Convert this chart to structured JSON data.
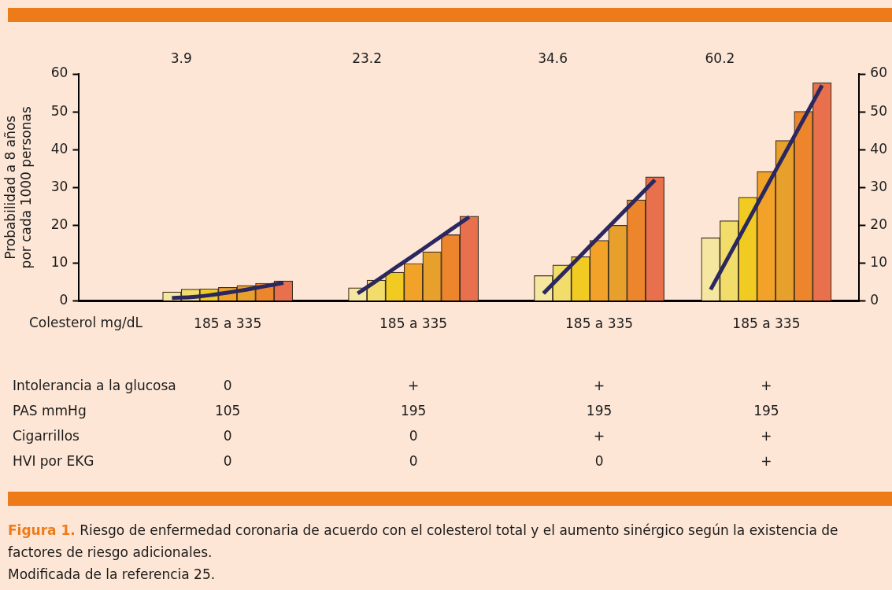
{
  "chart_data": {
    "type": "bar",
    "title": "Figura 1.",
    "subtitle": "Riesgo de enfermedad coronaria de acuerdo con el colesterol total y el aumento sinérgico según la existencia de factores de riesgo adicionales.",
    "ylabel": "Probabilidad a 8 años por cada 1000 personas",
    "xlabel": "Colesterol mg/dL",
    "categories": [
      null,
      null,
      null,
      null,
      null,
      null,
      null,
      null,
      "185 a 335",
      null,
      null,
      null,
      null,
      null,
      null,
      null,
      null,
      null,
      "185 a 335",
      null,
      null,
      null,
      null,
      null,
      null,
      null,
      null,
      null,
      "185 a 335",
      null,
      null,
      null,
      null,
      null,
      null,
      null,
      null,
      "185 a 335",
      null,
      null,
      null,
      null,
      null
    ],
    "series": [
      {
        "colors": [
          null,
          null,
          null,
          null,
          null,
          "#f5e6a0",
          "#f2dd6a",
          "#f2cb22",
          "#f2a228",
          "#e8a02c",
          "#ec852c",
          "#e8704c",
          null,
          null,
          null,
          "#f5e6a0",
          "#f2dd6a",
          "#f2cb22",
          "#f2a228",
          "#e8a02c",
          "#ec852c",
          "#e8704c",
          null,
          null,
          null,
          "#f5e6a0",
          "#f2dd6a",
          "#f2cb22",
          "#f2a228",
          "#e8a02c",
          "#ec852c",
          "#e8704c",
          null,
          null,
          "#f5e6a0",
          "#f2dd6a",
          "#f2cb22",
          "#f2a228",
          "#e8a02c",
          "#ec852c",
          "#e8704c",
          null,
          null
        ],
        "values": [
          null,
          null,
          null,
          null,
          null,
          2.4,
          3.1,
          3.2,
          3.6,
          4.1,
          4.7,
          5.3,
          null,
          null,
          null,
          3.5,
          5.5,
          7.6,
          9.9,
          13,
          17.5,
          22.4,
          null,
          null,
          null,
          6.7,
          9.5,
          11.7,
          16,
          20,
          26.7,
          32.8,
          null,
          null,
          16.7,
          21.2,
          27.4,
          34.2,
          42.4,
          50.1,
          57.7,
          null,
          null
        ]
      },
      {
        "type": "line",
        "color": "#2b2860",
        "values": [
          null,
          null,
          null,
          null,
          null,
          0.8,
          1,
          1.5,
          2.2,
          3,
          3.9,
          4.8,
          null,
          null,
          null,
          null,
          null,
          null,
          null,
          null,
          null,
          null,
          null,
          null,
          null,
          null,
          null,
          null,
          null,
          null,
          null,
          null,
          null,
          null,
          null,
          null,
          null,
          null,
          null,
          null,
          null,
          null,
          null
        ]
      },
      {
        "type": "line",
        "color": "#2b2860",
        "values": [
          null,
          null,
          null,
          null,
          null,
          null,
          null,
          null,
          null,
          null,
          null,
          null,
          null,
          null,
          null,
          2,
          5.3,
          8.7,
          12,
          15.4,
          18.8,
          22.2,
          null,
          null,
          null,
          null,
          null,
          null,
          null,
          null,
          null,
          null,
          null,
          null,
          null,
          null,
          null,
          null,
          null,
          null,
          null,
          null,
          null
        ]
      },
      {
        "type": "line",
        "color": "#2b2860",
        "values": [
          null,
          null,
          null,
          null,
          null,
          null,
          null,
          null,
          null,
          null,
          null,
          null,
          null,
          null,
          null,
          null,
          null,
          null,
          null,
          null,
          null,
          null,
          null,
          null,
          null,
          2,
          7,
          12,
          17,
          22,
          27,
          32,
          null,
          null,
          null,
          null,
          null,
          null,
          null,
          null,
          null,
          null,
          null
        ]
      },
      {
        "type": "line",
        "color": "#2b2860",
        "values": [
          null,
          null,
          null,
          null,
          null,
          null,
          null,
          null,
          null,
          null,
          null,
          null,
          null,
          null,
          null,
          null,
          null,
          null,
          null,
          null,
          null,
          null,
          null,
          null,
          null,
          null,
          null,
          null,
          null,
          null,
          null,
          null,
          null,
          null,
          3,
          12,
          21,
          30,
          39,
          48,
          57,
          null,
          null
        ]
      }
    ],
    "ylim": [
      0,
      60
    ],
    "yticks": [
      0,
      10,
      20,
      30,
      40,
      50,
      60
    ],
    "y2lim": [
      0,
      60
    ],
    "y2ticks": [
      0,
      10,
      20,
      30,
      40,
      50,
      60
    ],
    "legend": false,
    "grid": false,
    "marker": "none",
    "annotations": [
      "3.9",
      "23.2",
      "34.6",
      "60.2",
      "Intolerancia a la glucosa",
      "0",
      "+",
      "+",
      "+",
      "PAS mmHg",
      "105",
      "195",
      "195",
      "195",
      "Cigarrillos",
      "0",
      "0",
      "+",
      "+",
      "HVI por EKG",
      "0",
      "0",
      "0",
      "+",
      "Modificada de la referencia 25."
    ]
  }
}
